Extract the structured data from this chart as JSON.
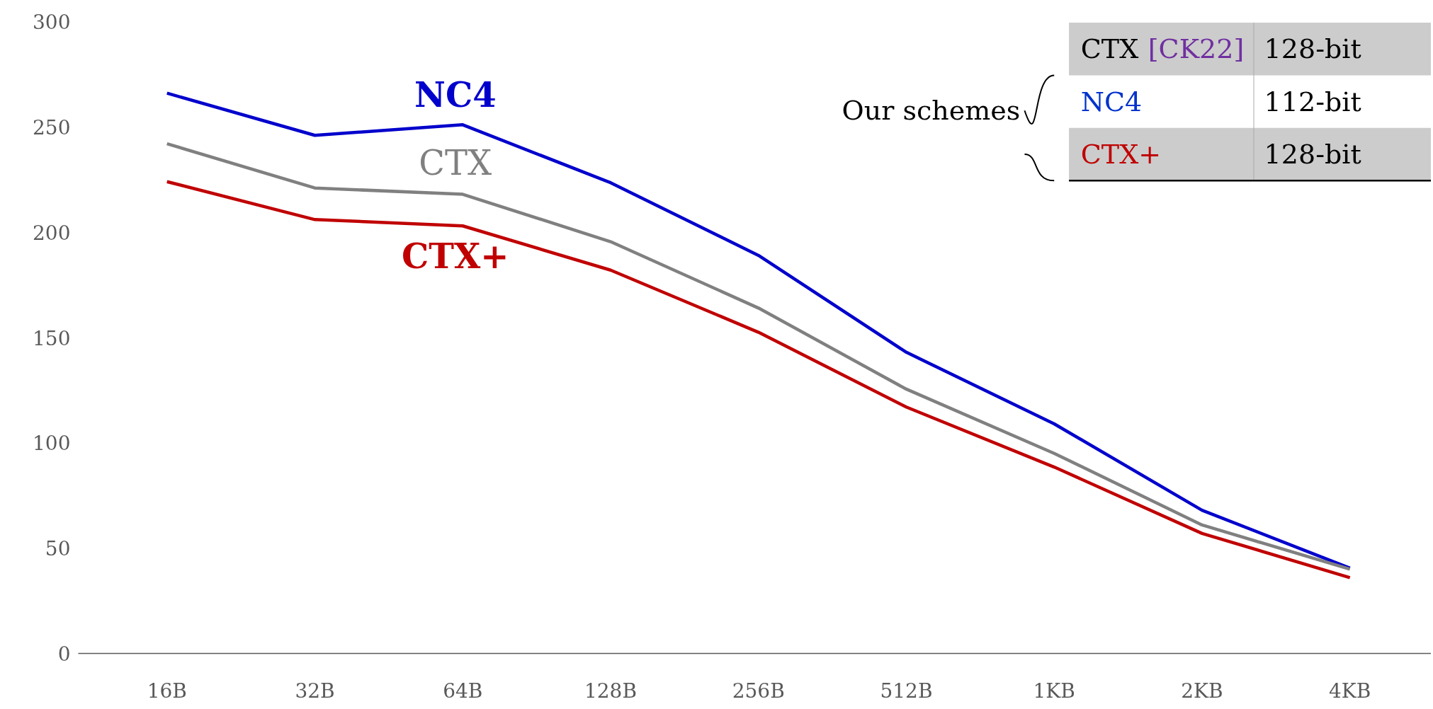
{
  "chart_data": {
    "type": "line",
    "categories": [
      "16B",
      "32B",
      "64B",
      "128B",
      "256B",
      "512B",
      "1KB",
      "2KB",
      "4KB"
    ],
    "series": [
      {
        "name": "NC4",
        "color": "#0000cc",
        "values": [
          266,
          246,
          251,
          223.5,
          189,
          143,
          109,
          68,
          40.5
        ]
      },
      {
        "name": "CTX",
        "color": "#808080",
        "values": [
          242,
          221,
          218,
          195.5,
          164,
          125.5,
          95,
          61,
          40
        ]
      },
      {
        "name": "CTX+",
        "color": "#c00000",
        "values": [
          224,
          206,
          203,
          182,
          152.5,
          117,
          88.5,
          57,
          36
        ]
      }
    ],
    "ylim": [
      0,
      300
    ],
    "yticks": [
      0,
      50,
      100,
      150,
      200,
      250,
      300
    ],
    "annotations": [
      "Our schemes",
      "CTX",
      "[CK22]",
      "128-bit",
      "NC4",
      "112-bit",
      "CTX+",
      "128-bit"
    ]
  }
}
